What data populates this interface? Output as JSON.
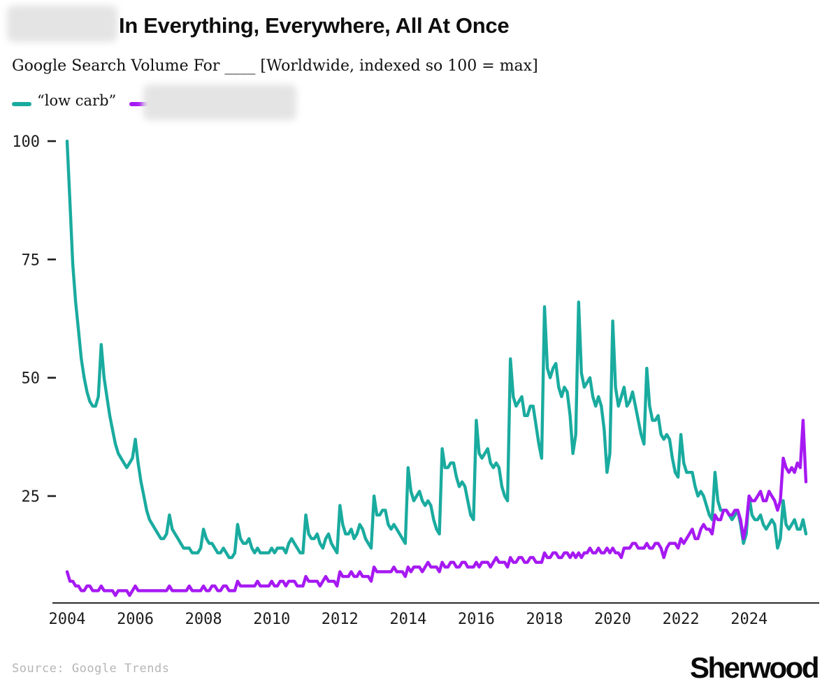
{
  "header": {
    "title_visible": "In Everything, Everywhere, All At Once",
    "title_prefix_redacted": true,
    "subtitle": "Google Search Volume For ____ [Worldwide, indexed so 100 = max]"
  },
  "legend": [
    {
      "label": "“low carb”",
      "color": "#1aab9f",
      "redacted": false
    },
    {
      "label": "",
      "color": "#a619f2",
      "redacted": true
    }
  ],
  "footer": {
    "source": "Source: Google Trends",
    "brand": "Sherwood"
  },
  "chart_data": {
    "type": "line",
    "title": "In Everything, Everywhere, All At Once",
    "subtitle": "Google Search Volume For ____ [Worldwide, indexed so 100 = max]",
    "x_unit": "month",
    "x_start": "2004-01",
    "x_end": "2025-09",
    "x_tick_labels": [
      "2004",
      "2006",
      "2008",
      "2010",
      "2012",
      "2014",
      "2016",
      "2018",
      "2020",
      "2022",
      "2024"
    ],
    "y_ticks": [
      25,
      50,
      75,
      100
    ],
    "ylim": [
      0,
      100
    ],
    "grid": false,
    "legend_position": "top-left",
    "series": [
      {
        "name": "“low carb”",
        "color": "#1aab9f",
        "values": [
          100,
          87,
          74,
          66,
          60,
          54,
          50,
          47,
          45,
          44,
          44,
          46,
          57,
          50,
          46,
          42,
          39,
          36,
          34,
          33,
          32,
          31,
          32,
          33,
          37,
          32,
          28,
          25,
          22,
          20,
          19,
          18,
          17,
          16,
          16,
          17,
          21,
          18,
          17,
          16,
          15,
          14,
          14,
          14,
          13,
          13,
          13,
          14,
          18,
          16,
          15,
          15,
          14,
          13,
          13,
          14,
          13,
          12,
          12,
          13,
          19,
          16,
          15,
          15,
          16,
          14,
          13,
          14,
          13,
          13,
          13,
          13,
          14,
          13,
          14,
          14,
          14,
          13,
          15,
          16,
          15,
          14,
          13,
          13,
          21,
          17,
          16,
          16,
          17,
          15,
          14,
          16,
          17,
          15,
          14,
          13,
          23,
          19,
          17,
          17,
          18,
          16,
          17,
          19,
          18,
          16,
          15,
          14,
          25,
          21,
          21,
          22,
          22,
          19,
          18,
          19,
          18,
          17,
          16,
          15,
          31,
          26,
          24,
          25,
          26,
          24,
          23,
          24,
          23,
          20,
          18,
          17,
          35,
          31,
          31,
          32,
          32,
          29,
          27,
          28,
          27,
          24,
          21,
          20,
          41,
          34,
          33,
          34,
          35,
          32,
          31,
          32,
          31,
          27,
          25,
          24,
          54,
          46,
          44,
          45,
          46,
          42,
          42,
          44,
          44,
          40,
          36,
          33,
          65,
          52,
          50,
          52,
          53,
          48,
          46,
          48,
          47,
          42,
          34,
          38,
          66,
          51,
          48,
          49,
          50,
          46,
          44,
          46,
          44,
          39,
          30,
          34,
          62,
          48,
          44,
          46,
          48,
          44,
          45,
          47,
          44,
          41,
          38,
          36,
          52,
          44,
          41,
          41,
          42,
          38,
          37,
          38,
          37,
          33,
          30,
          29,
          38,
          32,
          30,
          30,
          30,
          27,
          25,
          26,
          25,
          23,
          21,
          20,
          30,
          24,
          22,
          22,
          22,
          21,
          20,
          21,
          22,
          19,
          15,
          17,
          25,
          21,
          20,
          20,
          21,
          19,
          18,
          19,
          20,
          19,
          14,
          16,
          24,
          19,
          18,
          19,
          20,
          18,
          18,
          20,
          17
        ]
      },
      {
        "name": "",
        "redacted": true,
        "color": "#a619f2",
        "values": [
          9,
          7,
          7,
          6,
          6,
          5,
          5,
          6,
          6,
          5,
          5,
          5,
          6,
          5,
          5,
          5,
          5,
          4,
          5,
          5,
          5,
          5,
          4,
          5,
          6,
          5,
          5,
          5,
          5,
          5,
          5,
          5,
          5,
          5,
          5,
          5,
          6,
          5,
          5,
          5,
          5,
          5,
          5,
          6,
          5,
          5,
          5,
          5,
          6,
          5,
          5,
          6,
          6,
          5,
          5,
          6,
          6,
          5,
          5,
          5,
          7,
          6,
          6,
          6,
          6,
          6,
          6,
          7,
          6,
          6,
          6,
          6,
          7,
          6,
          6,
          7,
          7,
          6,
          7,
          7,
          7,
          6,
          6,
          6,
          8,
          7,
          7,
          7,
          7,
          6,
          7,
          8,
          7,
          7,
          7,
          6,
          9,
          8,
          8,
          8,
          9,
          8,
          8,
          9,
          8,
          8,
          8,
          7,
          10,
          9,
          9,
          9,
          9,
          9,
          9,
          10,
          9,
          9,
          9,
          8,
          10,
          9,
          10,
          10,
          10,
          9,
          10,
          11,
          10,
          10,
          10,
          9,
          11,
          10,
          10,
          11,
          11,
          10,
          10,
          11,
          11,
          10,
          10,
          10,
          11,
          10,
          11,
          11,
          11,
          10,
          11,
          12,
          11,
          11,
          11,
          10,
          12,
          11,
          11,
          12,
          12,
          11,
          11,
          12,
          12,
          11,
          11,
          11,
          13,
          12,
          12,
          13,
          13,
          12,
          12,
          13,
          13,
          12,
          13,
          12,
          13,
          12,
          13,
          13,
          14,
          13,
          13,
          14,
          13,
          13,
          14,
          13,
          14,
          13,
          13,
          12,
          14,
          14,
          14,
          15,
          15,
          14,
          14,
          14,
          15,
          14,
          14,
          15,
          15,
          14,
          12,
          14,
          15,
          15,
          15,
          14,
          16,
          15,
          16,
          17,
          18,
          16,
          16,
          18,
          19,
          18,
          18,
          17,
          21,
          20,
          20,
          22,
          22,
          21,
          21,
          22,
          22,
          20,
          16,
          19,
          25,
          24,
          24,
          25,
          26,
          24,
          24,
          26,
          25,
          24,
          22,
          24,
          33,
          31,
          30,
          31,
          30,
          32,
          31,
          41,
          28
        ]
      }
    ]
  }
}
